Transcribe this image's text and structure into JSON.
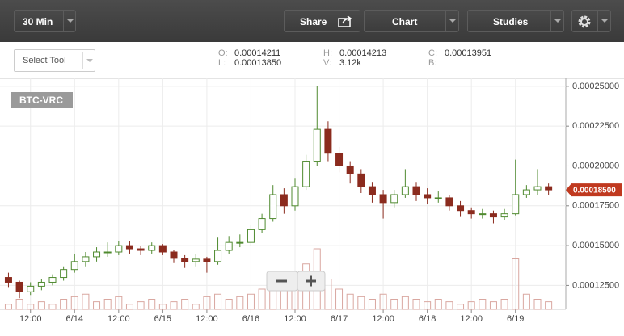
{
  "toolbar": {
    "interval": "30 Min",
    "share": "Share",
    "chart": "Chart",
    "studies": "Studies",
    "select_tool": "Select Tool"
  },
  "ohlc_info": [
    {
      "label": "O:",
      "value": "0.00014211"
    },
    {
      "label": "L:",
      "value": "0.00013850"
    },
    {
      "label": "H:",
      "value": "0.00014213"
    },
    {
      "label": "V:",
      "value": "3.12k"
    },
    {
      "label": "C:",
      "value": "0.00013951"
    },
    {
      "label": "B:"
    }
  ],
  "chart_data": {
    "type": "candlestick",
    "symbol": "BTC-VRC",
    "x": [
      6,
      9,
      12,
      15,
      18,
      21,
      24,
      27,
      30,
      33,
      36,
      39,
      42,
      45,
      48,
      51,
      54,
      57,
      60,
      63,
      66,
      69,
      72,
      75,
      78,
      81,
      84,
      87,
      90,
      93,
      96,
      99,
      102,
      105,
      108,
      111,
      114,
      117,
      120,
      123,
      126,
      129,
      132,
      135,
      138,
      141,
      144,
      147,
      150,
      153
    ],
    "open": [
      0.00013,
      0.000127,
      0.000121,
      0.0001245,
      0.000127,
      0.00013,
      0.000135,
      0.00014,
      0.000143,
      0.000146,
      0.000146,
      0.00015,
      0.000148,
      0.000147,
      0.00015,
      0.000146,
      0.000142,
      0.00014,
      0.0001415,
      0.00014,
      0.000147,
      0.000152,
      0.000152,
      0.00016,
      0.000167,
      0.000182,
      0.000175,
      0.000187,
      0.000203,
      0.000223,
      0.000208,
      0.0002,
      0.000195,
      0.000187,
      0.000182,
      0.000177,
      0.000182,
      0.000187,
      0.000182,
      0.00018,
      0.00018,
      0.000175,
      0.000172,
      0.00017,
      0.00017,
      0.000168,
      0.00017,
      0.000182,
      0.000185,
      0.000187
    ],
    "high": [
      0.000133,
      0.000128,
      0.000127,
      0.000129,
      0.000132,
      0.000137,
      0.000145,
      0.000146,
      0.000149,
      0.000152,
      0.000153,
      0.000153,
      0.00015,
      0.000152,
      0.000151,
      0.000147,
      0.000144,
      0.000145,
      0.000143,
      0.000155,
      0.000156,
      0.000157,
      0.000163,
      0.00017,
      0.000188,
      0.000186,
      0.000192,
      0.000207,
      0.00025,
      0.000228,
      0.000212,
      0.000203,
      0.000198,
      0.00019,
      0.000185,
      0.000185,
      0.000198,
      0.00019,
      0.000186,
      0.000184,
      0.000182,
      0.000178,
      0.000174,
      0.000173,
      0.000172,
      0.000173,
      0.000204,
      0.000188,
      0.000198,
      0.000189
    ],
    "low": [
      0.000124,
      0.000117,
      0.000119,
      0.000122,
      0.000125,
      0.000128,
      0.000133,
      0.000137,
      0.00014,
      0.000143,
      0.000144,
      0.000145,
      0.000144,
      0.000145,
      0.000144,
      0.000139,
      0.000136,
      0.000137,
      0.000133,
      0.000138,
      0.000145,
      0.000149,
      0.00015,
      0.000158,
      0.000165,
      0.00017,
      0.000172,
      0.000185,
      0.0002,
      0.000203,
      0.000196,
      0.000189,
      0.000183,
      0.000177,
      0.000167,
      0.000174,
      0.00018,
      0.000178,
      0.000176,
      0.000177,
      0.000172,
      0.000168,
      0.000167,
      0.000167,
      0.000164,
      0.000166,
      0.000169,
      0.00018,
      0.000182,
      0.000182
    ],
    "close": [
      0.000127,
      0.000121,
      0.0001245,
      0.000127,
      0.00013,
      0.000135,
      0.00014,
      0.000143,
      0.000146,
      0.000146,
      0.00015,
      0.000148,
      0.000147,
      0.00015,
      0.000146,
      0.000142,
      0.00014,
      0.0001415,
      0.00014,
      0.000147,
      0.000152,
      0.000152,
      0.00016,
      0.000167,
      0.000182,
      0.000175,
      0.000187,
      0.000203,
      0.000223,
      0.000208,
      0.0002,
      0.000195,
      0.000187,
      0.000182,
      0.000177,
      0.000182,
      0.000187,
      0.000182,
      0.00018,
      0.00018,
      0.000175,
      0.000172,
      0.00017,
      0.00017,
      0.000168,
      0.00017,
      0.000182,
      0.000185,
      0.000187,
      0.000185
    ],
    "volume": [
      1,
      2,
      1,
      1.5,
      1,
      2,
      2.5,
      3,
      1.5,
      2,
      2.5,
      1,
      1.5,
      2,
      1,
      1.5,
      2,
      1,
      2.5,
      3,
      2,
      2.5,
      3,
      4,
      6,
      5,
      7,
      9,
      12,
      6,
      4,
      3,
      2.5,
      2,
      3,
      2,
      2.5,
      2,
      1.5,
      2,
      1.5,
      1,
      1.5,
      2,
      1.5,
      2,
      10,
      3,
      2,
      1.5
    ],
    "volume_ylim": [
      0,
      12
    ],
    "xlim": [
      4.8,
      157.7
    ],
    "xticks": [
      {
        "value": 12,
        "label": "12:00"
      },
      {
        "value": 24,
        "label": "6/14"
      },
      {
        "value": 36,
        "label": "12:00"
      },
      {
        "value": 48,
        "label": "6/15"
      },
      {
        "value": 60,
        "label": "12:00"
      },
      {
        "value": 72,
        "label": "6/16"
      },
      {
        "value": 84,
        "label": "12:00"
      },
      {
        "value": 96,
        "label": "6/17"
      },
      {
        "value": 108,
        "label": "12:00"
      },
      {
        "value": 120,
        "label": "6/18"
      },
      {
        "value": 132,
        "label": "12:00"
      },
      {
        "value": 144,
        "label": "6/19"
      }
    ],
    "ylim": [
      0.00011,
      0.000255
    ],
    "yticks": [
      {
        "value": 0.000125,
        "label": "0.00012500"
      },
      {
        "value": 0.00015,
        "label": "0.00015000"
      },
      {
        "value": 0.000175,
        "label": "0.00017500"
      },
      {
        "value": 0.0002,
        "label": "0.00020000"
      },
      {
        "value": 0.000225,
        "label": "0.00022500"
      },
      {
        "value": 0.00025,
        "label": "0.00025000"
      }
    ],
    "last_price": {
      "value": 0.000185,
      "label": "0.00018500"
    },
    "grid": true,
    "up_color": "#4f8a2f",
    "down_color": "#8b2b1e",
    "volume_color": "#d9a7a0",
    "last_price_color": "#c0391f"
  }
}
